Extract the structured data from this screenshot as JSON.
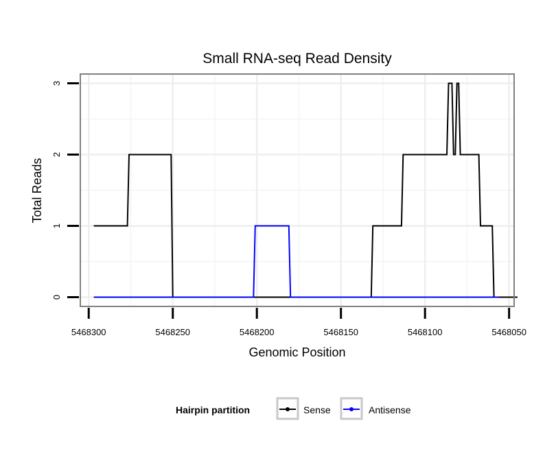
{
  "chart_data": {
    "type": "line",
    "title": "Small RNA-seq Read Density",
    "xlabel": "Genomic Position",
    "ylabel": "Total Reads",
    "x_reversed": true,
    "xlim": [
      5468305,
      5468047
    ],
    "ylim": [
      -0.13,
      3.13
    ],
    "x_ticks": [
      5468300,
      5468250,
      5468200,
      5468150,
      5468100,
      5468050
    ],
    "x_tick_labels": [
      "5468300",
      "5468250",
      "5468200",
      "5468150",
      "5468100",
      "5468050"
    ],
    "x_minor_ticks": [
      5468275,
      5468225,
      5468175,
      5468125,
      5468075
    ],
    "y_ticks": [
      0,
      1,
      2,
      3
    ],
    "y_tick_labels": [
      "0",
      "1",
      "2",
      "3"
    ],
    "y_minor_ticks": [
      0.5,
      1.5,
      2.5
    ],
    "grid": true,
    "series": [
      {
        "name": "Sense",
        "color": "#000000",
        "x": [
          5468297,
          5468277,
          5468276,
          5468251,
          5468250,
          5468222,
          5468221,
          5468199,
          5468198,
          5468132,
          5468131,
          5468114,
          5468113,
          5468102,
          5468101,
          5468087,
          5468086,
          5468084,
          5468083,
          5468082,
          5468081,
          5468080,
          5468079,
          5468078,
          5468077,
          5468074,
          5468073,
          5468068,
          5468067,
          5468064,
          5468063,
          5468060,
          5468059,
          5468054,
          5468053,
          5468045
        ],
        "y": [
          1,
          1,
          2,
          2,
          0,
          0,
          0,
          0,
          0,
          0,
          1,
          1,
          2,
          2,
          2,
          2,
          3,
          3,
          2,
          2,
          3,
          3,
          2,
          2,
          2,
          2,
          2,
          2,
          1,
          1,
          1,
          1,
          0,
          0,
          0,
          0
        ]
      },
      {
        "name": "Antisense",
        "color": "#0000ff",
        "x": [
          5468297,
          5468202,
          5468201,
          5468181,
          5468180,
          5468056
        ],
        "y": [
          0,
          0,
          1,
          1,
          0,
          0
        ]
      }
    ],
    "legend": {
      "title": "Hairpin partition",
      "position": "bottom",
      "entries": [
        {
          "label": "Sense",
          "color": "#000000"
        },
        {
          "label": "Antisense",
          "color": "#0000ff"
        }
      ]
    }
  }
}
